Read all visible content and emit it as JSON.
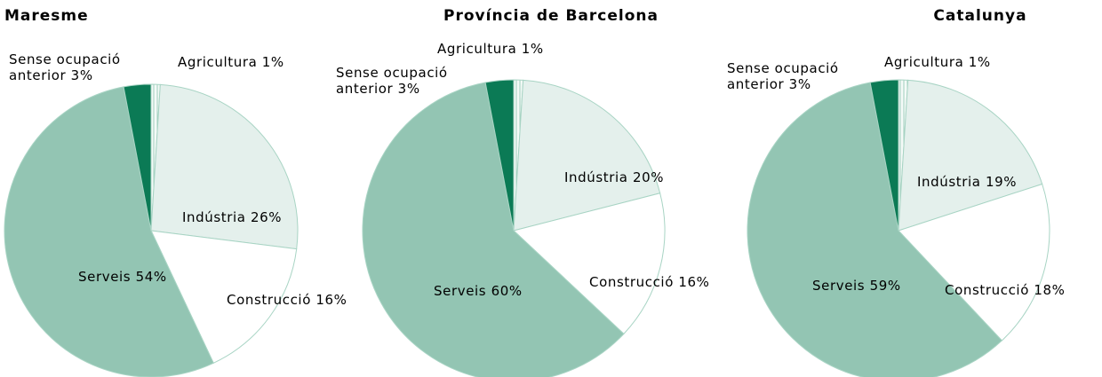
{
  "chart_data": [
    {
      "type": "pie",
      "title": "Maresme",
      "categories": [
        "Agricultura",
        "Indústria",
        "Construcció",
        "Serveis",
        "Sense ocupació anterior"
      ],
      "values": [
        1,
        26,
        16,
        54,
        3
      ],
      "value_labels": [
        "1%",
        "26%",
        "16%",
        "54%",
        "3%"
      ],
      "colors": [
        "#f4faf7",
        "#e4f0ec",
        "#ffffff",
        "#93c5b3",
        "#0b7a55"
      ]
    },
    {
      "type": "pie",
      "title": "Província de Barcelona",
      "categories": [
        "Agricultura",
        "Indústria",
        "Construcció",
        "Serveis",
        "Sense ocupació anterior"
      ],
      "values": [
        1,
        20,
        16,
        60,
        3
      ],
      "value_labels": [
        "1%",
        "20%",
        "16%",
        "60%",
        "3%"
      ],
      "colors": [
        "#f4faf7",
        "#e4f0ec",
        "#ffffff",
        "#93c5b3",
        "#0b7a55"
      ]
    },
    {
      "type": "pie",
      "title": "Catalunya",
      "categories": [
        "Agricultura",
        "Indústria",
        "Construcció",
        "Serveis",
        "Sense ocupació anterior"
      ],
      "values": [
        1,
        19,
        18,
        59,
        3
      ],
      "value_labels": [
        "1%",
        "19%",
        "18%",
        "59%",
        "3%"
      ],
      "colors": [
        "#f4faf7",
        "#e4f0ec",
        "#ffffff",
        "#93c5b3",
        "#0b7a55"
      ]
    }
  ]
}
